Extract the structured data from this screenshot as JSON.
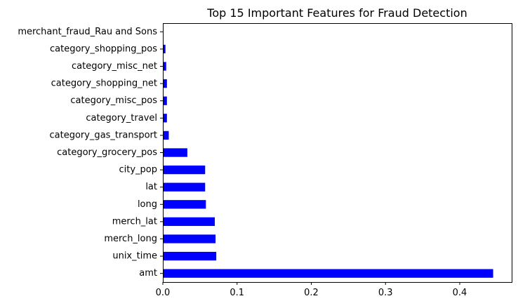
{
  "chart_data": {
    "type": "bar",
    "orientation": "horizontal",
    "title": "Top 15 Important Features for Fraud Detection",
    "xlabel": "",
    "ylabel": "",
    "xlim": [
      0,
      0.47
    ],
    "xticks": [
      {
        "value": 0.0,
        "label": "0.0"
      },
      {
        "value": 0.1,
        "label": "0.1"
      },
      {
        "value": 0.2,
        "label": "0.2"
      },
      {
        "value": 0.3,
        "label": "0.3"
      },
      {
        "value": 0.4,
        "label": "0.4"
      }
    ],
    "categories": [
      "amt",
      "unix_time",
      "merch_long",
      "merch_lat",
      "long",
      "lat",
      "city_pop",
      "category_grocery_pos",
      "category_gas_transport",
      "category_travel",
      "category_misc_pos",
      "category_shopping_net",
      "category_misc_net",
      "category_shopping_pos",
      "merchant_fraud_Rau and Sons"
    ],
    "values": [
      0.445,
      0.072,
      0.071,
      0.07,
      0.058,
      0.057,
      0.057,
      0.033,
      0.008,
      0.0055,
      0.0055,
      0.0055,
      0.0045,
      0.0035,
      0.0
    ],
    "bar_color": "#0000ff",
    "grid": false,
    "legend": "none"
  }
}
